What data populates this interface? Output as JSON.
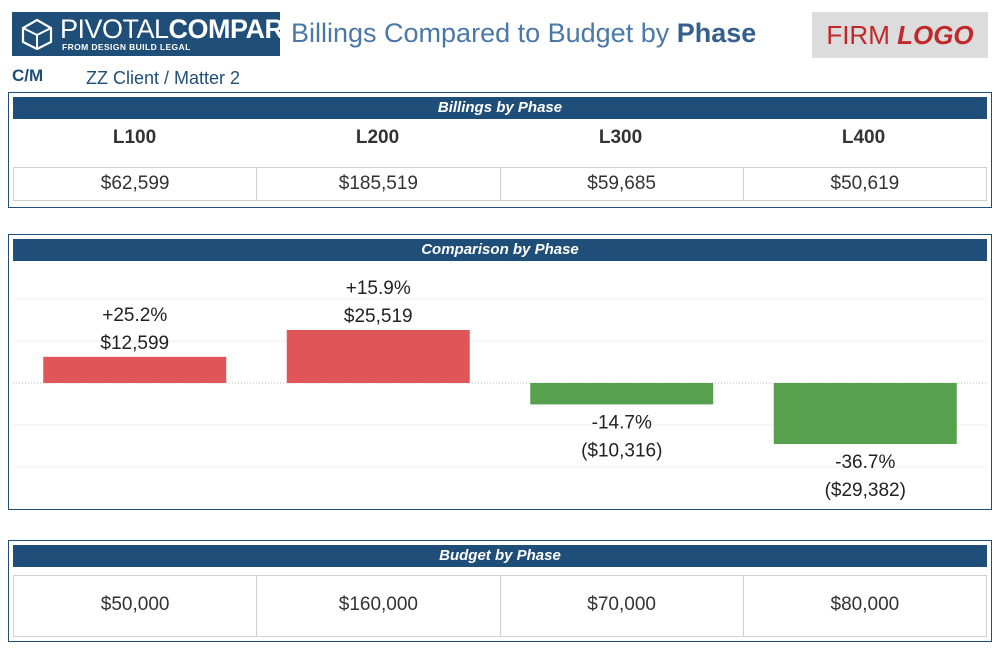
{
  "header": {
    "brand_light": "PIVOTAL",
    "brand_bold": "COMPARE",
    "brand_tagline": "FROM DESIGN BUILD LEGAL",
    "title_prefix": "Billings Compared to Budget by ",
    "title_bold": "Phase",
    "firm_logo_text": "FIRM ",
    "firm_logo_italic": "LOGO"
  },
  "client": {
    "label": "C/M",
    "value": "ZZ Client / Matter 2"
  },
  "billings": {
    "title": "Billings by Phase",
    "phases": [
      "L100",
      "L200",
      "L300",
      "L400"
    ],
    "values": [
      "$62,599",
      "$185,519",
      "$59,685",
      "$50,619"
    ]
  },
  "budget": {
    "title": "Budget by Phase",
    "values": [
      "$50,000",
      "$160,000",
      "$70,000",
      "$80,000"
    ]
  },
  "colors": {
    "navy": "#1f4e79",
    "over_budget": "#e05558",
    "under_budget": "#57a14e"
  },
  "chart_data": {
    "type": "bar",
    "title": "Comparison by Phase",
    "categories": [
      "L100",
      "L200",
      "L300",
      "L400"
    ],
    "values": [
      12599,
      25519,
      -10316,
      -29382
    ],
    "percent_labels": [
      "+25.2%",
      "+15.9%",
      "-14.7%",
      "-36.7%"
    ],
    "value_labels": [
      "$12,599",
      "$25,519",
      "($10,316)",
      "($29,382)"
    ],
    "ylim": [
      -40000,
      40000
    ],
    "grid": true,
    "xlabel": "",
    "ylabel": ""
  }
}
